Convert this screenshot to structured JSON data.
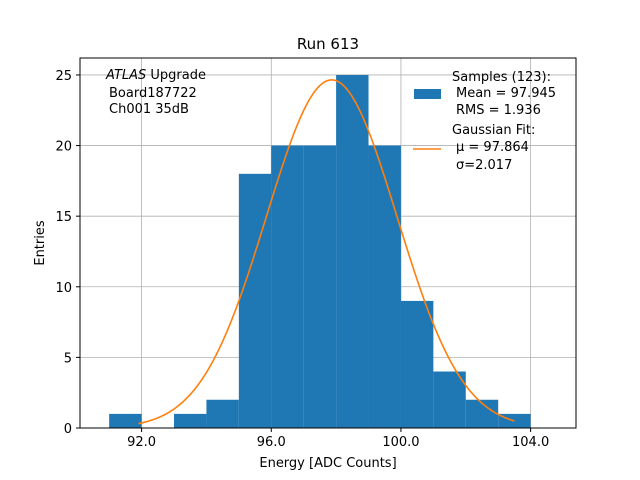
{
  "chart_data": {
    "type": "bar",
    "title": "Run 613",
    "xlabel": "Energy [ADC Counts]",
    "ylabel": "Entries",
    "xlim": [
      90.1,
      105.4
    ],
    "ylim": [
      0,
      26.2
    ],
    "grid": true,
    "legend_placement": "top-right",
    "x_ticks": [
      92.0,
      96.0,
      100.0,
      104.0
    ],
    "x_tick_labels": [
      "92.0",
      "96.0",
      "100.0",
      "104.0"
    ],
    "y_ticks": [
      0,
      5,
      10,
      15,
      20,
      25
    ],
    "y_tick_labels": [
      "0",
      "5",
      "10",
      "15",
      "20",
      "25"
    ],
    "bin_edges": [
      91,
      92,
      93,
      94,
      95,
      96,
      97,
      98,
      99,
      100,
      101,
      102,
      103,
      104,
      105
    ],
    "counts": [
      1,
      0,
      1,
      2,
      18,
      20,
      20,
      25,
      20,
      9,
      4,
      2,
      1,
      0
    ],
    "bar_color": "#1f77b4",
    "fit": {
      "mu": 97.864,
      "sigma": 2.017,
      "amplitude": 24.65,
      "x_range": [
        91.9,
        103.5
      ],
      "color": "#ff7f0e"
    },
    "annotation_lines": [
      "ATLAS Upgrade",
      "Board187722",
      "Ch001 35dB"
    ],
    "annotation_italic_word": "ATLAS",
    "legend": {
      "samples_lines": [
        "Samples (123):",
        "Mean = 97.945",
        "RMS = 1.936"
      ],
      "fit_lines": [
        "Gaussian Fit:",
        "μ = 97.864",
        "σ=2.017"
      ]
    }
  }
}
